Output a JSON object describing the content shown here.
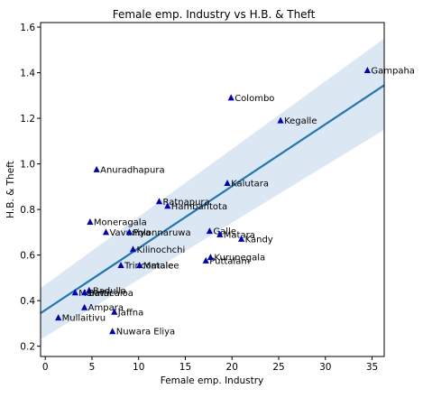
{
  "colors": {
    "marker": "#0000cc",
    "regression_line": "#1f77b4",
    "confidence_band": "#dbe7f3",
    "axis": "#000000",
    "background": "#ffffff"
  },
  "chart_data": {
    "type": "scatter",
    "title": "Female emp. Industry vs H.B. & Theft",
    "xlabel": "Female emp. Industry",
    "ylabel": "H.B. & Theft",
    "xlim": [
      -0.5,
      36.3
    ],
    "ylim": [
      0.155,
      1.62
    ],
    "xticks": [
      0,
      5,
      10,
      15,
      20,
      25,
      30,
      35
    ],
    "yticks": [
      0.2,
      0.4,
      0.6,
      0.8,
      1.0,
      1.2,
      1.4,
      1.6
    ],
    "ytick_labels": [
      "0.2",
      "0.4",
      "0.6",
      "0.8",
      "1.0",
      "1.2",
      "1.4",
      "1.6"
    ],
    "grid": false,
    "marker": "triangle",
    "points": [
      {
        "label": "Gampaha",
        "x": 34.5,
        "y": 1.41
      },
      {
        "label": "Colombo",
        "x": 19.9,
        "y": 1.29
      },
      {
        "label": "Kegalle",
        "x": 25.2,
        "y": 1.19
      },
      {
        "label": "Anuradhapura",
        "x": 5.5,
        "y": 0.975
      },
      {
        "label": "Kalutara",
        "x": 19.5,
        "y": 0.915
      },
      {
        "label": "Ratnapura",
        "x": 12.2,
        "y": 0.835
      },
      {
        "label": "Hambantota",
        "x": 13.1,
        "y": 0.815
      },
      {
        "label": "Moneragala",
        "x": 4.8,
        "y": 0.745
      },
      {
        "label": "Vavuniya",
        "x": 6.5,
        "y": 0.7
      },
      {
        "label": "Polonnaruwa",
        "x": 9.0,
        "y": 0.7
      },
      {
        "label": "Galle",
        "x": 17.6,
        "y": 0.705
      },
      {
        "label": "Matara",
        "x": 18.7,
        "y": 0.69
      },
      {
        "label": "Kandy",
        "x": 21.0,
        "y": 0.67
      },
      {
        "label": "Kilinochchi",
        "x": 9.4,
        "y": 0.625
      },
      {
        "label": "Kurunegala",
        "x": 17.7,
        "y": 0.59
      },
      {
        "label": "Puttalam",
        "x": 17.2,
        "y": 0.575
      },
      {
        "label": "Trincomalee",
        "x": 8.1,
        "y": 0.555
      },
      {
        "label": "Matale",
        "x": 10.1,
        "y": 0.555
      },
      {
        "label": "Badulla",
        "x": 4.7,
        "y": 0.445
      },
      {
        "label": "Mannar",
        "x": 3.2,
        "y": 0.435
      },
      {
        "label": "Batticaloa",
        "x": 4.2,
        "y": 0.435
      },
      {
        "label": "Ampara",
        "x": 4.2,
        "y": 0.37
      },
      {
        "label": "Jaffna",
        "x": 7.4,
        "y": 0.35
      },
      {
        "label": "Mullaitivu",
        "x": 1.4,
        "y": 0.325
      },
      {
        "label": "Nuwara Eliya",
        "x": 7.2,
        "y": 0.265
      }
    ],
    "regression": {
      "x": [
        -0.5,
        36.3
      ],
      "y": [
        0.345,
        1.345
      ],
      "ci_lower": [
        0.23,
        1.15
      ],
      "ci_upper": [
        0.455,
        1.55
      ]
    }
  }
}
